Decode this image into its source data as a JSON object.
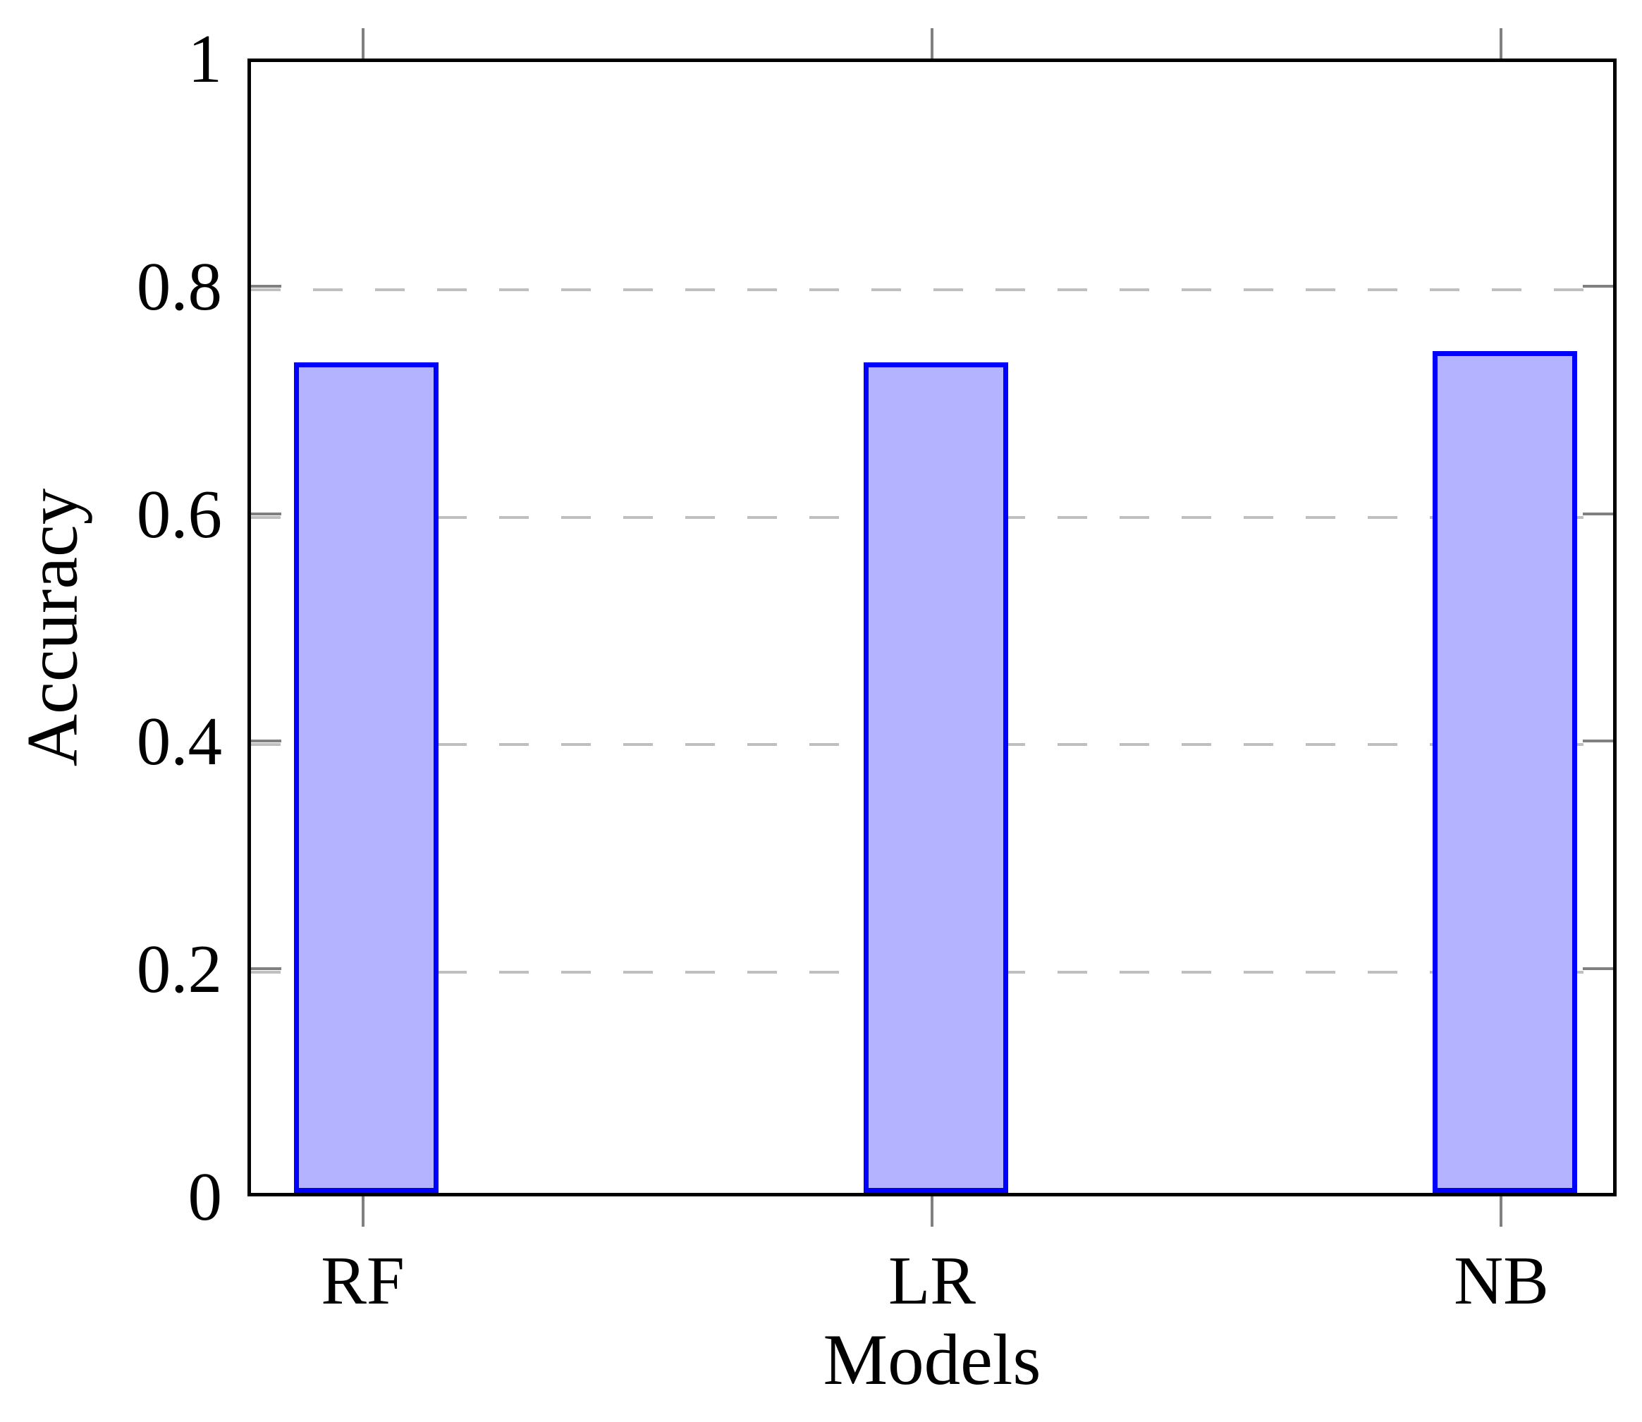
{
  "chart_data": {
    "type": "bar",
    "title": "",
    "xlabel": "Models",
    "ylabel": "Accuracy",
    "categories": [
      "RF",
      "LR",
      "NB"
    ],
    "values": [
      0.73,
      0.73,
      0.74
    ],
    "ylim": [
      0,
      1
    ],
    "yticks": [
      0,
      0.2,
      0.4,
      0.6,
      0.8,
      1
    ],
    "ytick_labels": [
      "0",
      "0.2",
      "0.4",
      "0.6",
      "0.8",
      "1"
    ],
    "grid": "horizontal-dashed",
    "legend_position": "none",
    "colors": {
      "bar_fill": "#b3b3ff",
      "bar_border": "#0000ff",
      "gridline": "#bfbfbf",
      "tick_mark": "#808080",
      "axis_frame": "#000000",
      "background": "#ffffff",
      "text": "#000000"
    }
  }
}
